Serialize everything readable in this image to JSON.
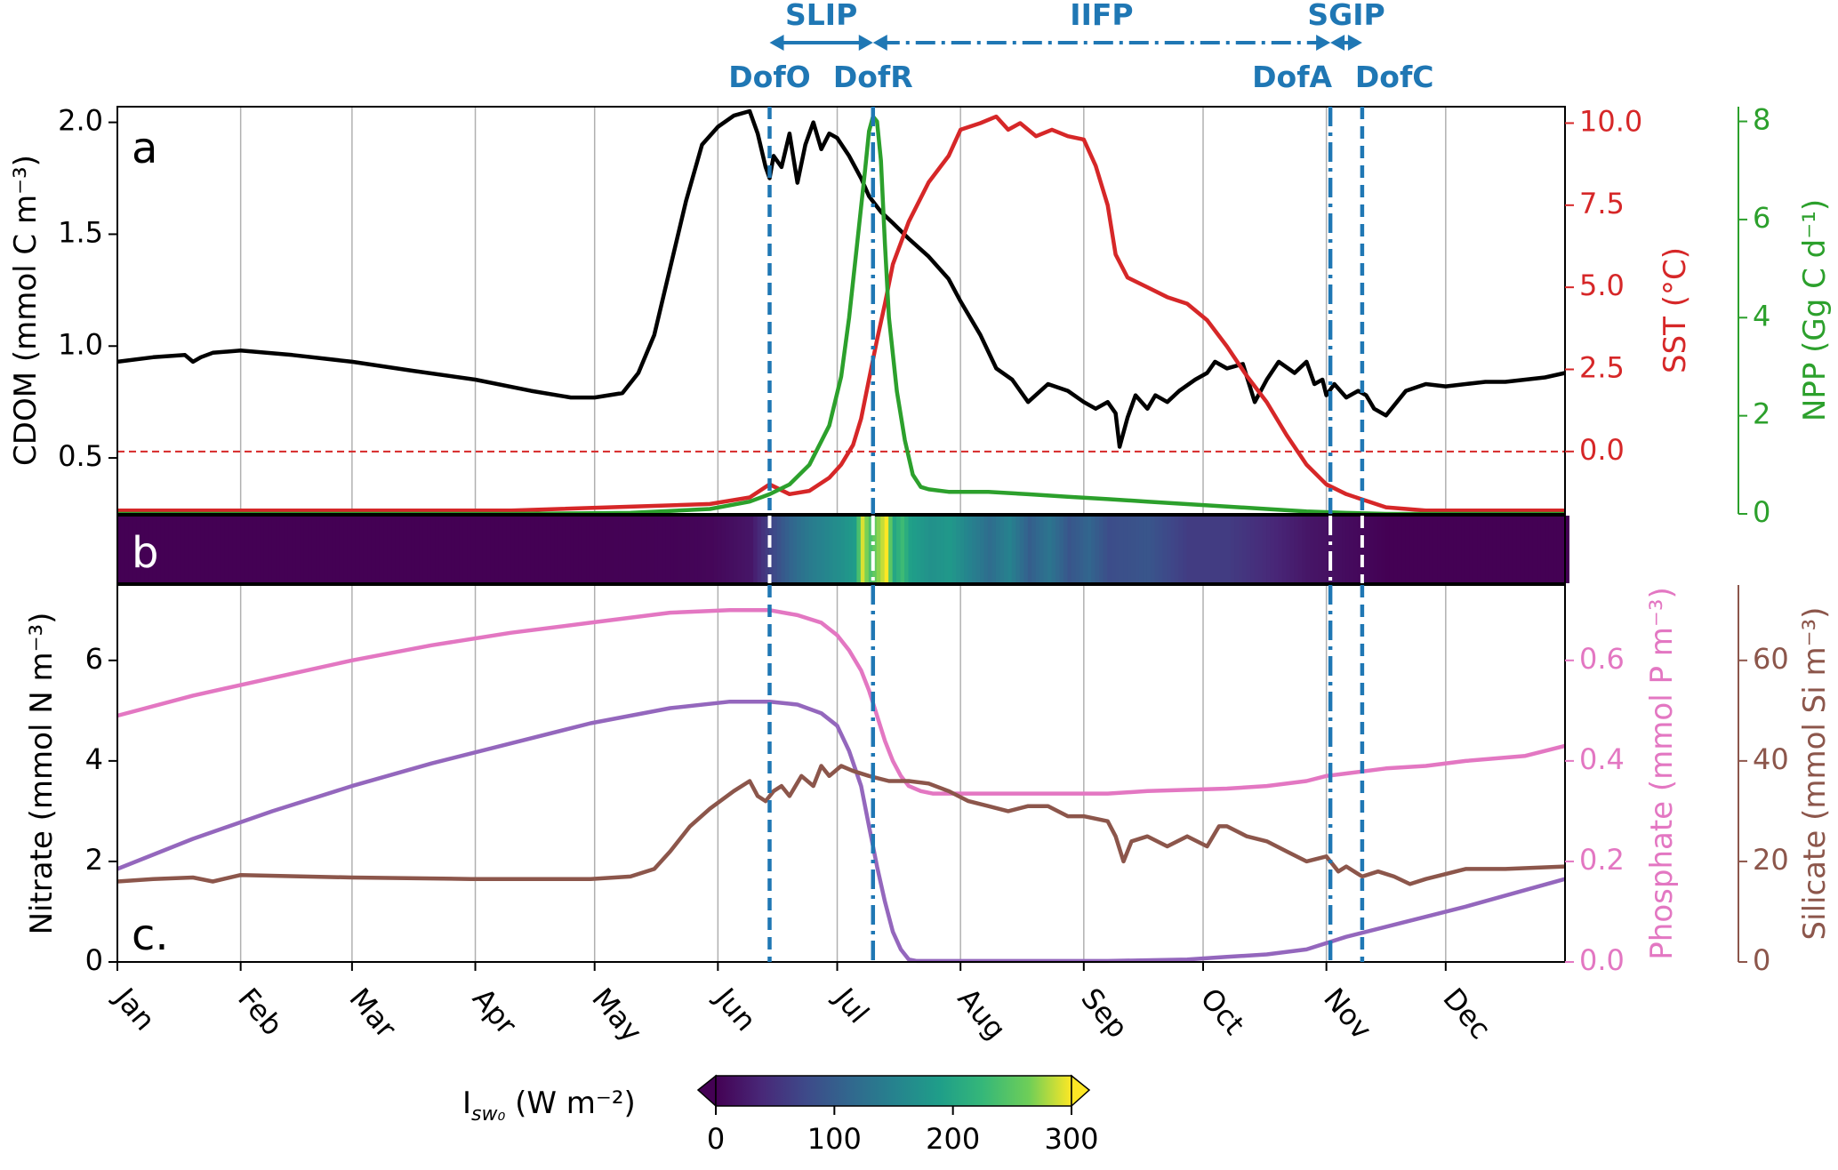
{
  "colors": {
    "cdom": "#000000",
    "sst": "#d62728",
    "npp": "#2ca02c",
    "nitrate": "#9467bd",
    "phosphate": "#e377c2",
    "silicate": "#8c564b",
    "event": "#1f77b4",
    "grid": "#b0b0b0"
  },
  "chart_data": [
    {
      "panel": "a",
      "type": "line",
      "x_unit": "day of year",
      "month_ticks": [
        "Jan",
        "Feb",
        "Mar",
        "Apr",
        "May",
        "Jun",
        "Jul",
        "Aug",
        "Sep",
        "Oct",
        "Nov",
        "Dec"
      ],
      "month_start_days": [
        1,
        32,
        60,
        91,
        121,
        152,
        182,
        213,
        244,
        274,
        305,
        335
      ],
      "xlim": [
        1,
        365
      ],
      "axes": {
        "left": {
          "label": "CDOM (mmol C m⁻³)",
          "ylim": [
            0.25,
            2.07
          ],
          "ticks": [
            "0.5",
            "1.0",
            "1.5",
            "2.0"
          ],
          "tick_values": [
            0.5,
            1.0,
            1.5,
            2.0
          ]
        },
        "right1": {
          "label": "SST (°C)",
          "ylim": [
            -1.9,
            10.5
          ],
          "ticks": [
            "0.0",
            "2.5",
            "5.0",
            "7.5",
            "10.0"
          ],
          "tick_values": [
            0,
            2.5,
            5,
            7.5,
            10
          ]
        },
        "right2": {
          "label": "NPP (Gg C d⁻¹)",
          "ylim": [
            0,
            8.3
          ],
          "ticks": [
            "0",
            "2",
            "4",
            "6",
            "8"
          ],
          "tick_values": [
            0,
            2,
            4,
            6,
            8
          ]
        }
      },
      "reference_line": {
        "axis": "right1",
        "value": 0.0,
        "style": "dashed"
      },
      "series": [
        {
          "name": "CDOM",
          "axis": "left",
          "x": [
            1,
            10,
            18,
            20,
            22,
            25,
            32,
            45,
            60,
            75,
            91,
            105,
            115,
            121,
            128,
            132,
            136,
            140,
            144,
            148,
            152,
            156,
            160,
            162,
            164,
            165,
            166,
            168,
            170,
            172,
            174,
            176,
            178,
            180,
            182,
            185,
            188,
            190,
            193,
            196,
            200,
            205,
            210,
            213,
            218,
            222,
            226,
            230,
            235,
            240,
            244,
            247,
            250,
            252,
            253,
            255,
            257,
            260,
            262,
            265,
            268,
            272,
            275,
            277,
            280,
            284,
            287,
            290,
            293,
            297,
            300,
            302,
            304,
            305,
            307,
            310,
            313,
            315,
            317,
            320,
            325,
            330,
            335,
            340,
            345,
            350,
            355,
            360,
            365
          ],
          "y": [
            0.93,
            0.95,
            0.96,
            0.93,
            0.95,
            0.97,
            0.98,
            0.96,
            0.93,
            0.89,
            0.85,
            0.8,
            0.77,
            0.77,
            0.79,
            0.88,
            1.05,
            1.35,
            1.65,
            1.9,
            1.98,
            2.03,
            2.05,
            1.95,
            1.8,
            1.75,
            1.85,
            1.8,
            1.95,
            1.73,
            1.9,
            2.0,
            1.88,
            1.95,
            1.93,
            1.85,
            1.75,
            1.67,
            1.6,
            1.55,
            1.48,
            1.4,
            1.3,
            1.2,
            1.05,
            0.9,
            0.85,
            0.75,
            0.83,
            0.8,
            0.75,
            0.72,
            0.75,
            0.7,
            0.55,
            0.68,
            0.78,
            0.72,
            0.78,
            0.75,
            0.8,
            0.85,
            0.88,
            0.93,
            0.9,
            0.92,
            0.75,
            0.85,
            0.93,
            0.88,
            0.93,
            0.83,
            0.85,
            0.78,
            0.83,
            0.77,
            0.8,
            0.78,
            0.72,
            0.69,
            0.8,
            0.83,
            0.82,
            0.83,
            0.84,
            0.84,
            0.85,
            0.86,
            0.88
          ]
        },
        {
          "name": "SST",
          "axis": "right1",
          "x": [
            1,
            100,
            150,
            160,
            165,
            170,
            175,
            180,
            183,
            186,
            188,
            190,
            192,
            194,
            196,
            200,
            205,
            210,
            213,
            218,
            222,
            225,
            228,
            232,
            236,
            240,
            244,
            247,
            250,
            252,
            255,
            260,
            265,
            270,
            275,
            280,
            285,
            290,
            295,
            300,
            305,
            310,
            315,
            320,
            330,
            340,
            365
          ],
          "y": [
            -1.8,
            -1.8,
            -1.6,
            -1.4,
            -1.0,
            -1.3,
            -1.2,
            -0.8,
            -0.4,
            0.2,
            1.0,
            2.2,
            3.4,
            4.5,
            5.7,
            7.0,
            8.2,
            9.0,
            9.8,
            10.0,
            10.2,
            9.8,
            10.0,
            9.6,
            9.8,
            9.6,
            9.5,
            8.7,
            7.5,
            6.0,
            5.3,
            5.0,
            4.7,
            4.5,
            4.0,
            3.2,
            2.3,
            1.5,
            0.5,
            -0.4,
            -1.0,
            -1.3,
            -1.5,
            -1.7,
            -1.8,
            -1.8,
            -1.8
          ]
        },
        {
          "name": "NPP",
          "axis": "right2",
          "x": [
            1,
            100,
            130,
            150,
            160,
            165,
            170,
            175,
            180,
            183,
            185,
            187,
            189,
            190,
            191,
            192,
            193,
            194,
            195,
            197,
            199,
            201,
            203,
            205,
            210,
            220,
            230,
            240,
            250,
            260,
            270,
            280,
            290,
            300,
            310,
            320,
            365
          ],
          "y": [
            0,
            0,
            0.02,
            0.1,
            0.25,
            0.4,
            0.6,
            1.0,
            1.8,
            2.8,
            4.0,
            5.5,
            7.0,
            7.8,
            8.1,
            8.0,
            7.2,
            5.5,
            4.0,
            2.5,
            1.5,
            0.8,
            0.55,
            0.5,
            0.45,
            0.45,
            0.4,
            0.35,
            0.3,
            0.25,
            0.2,
            0.15,
            0.1,
            0.05,
            0.02,
            0,
            0
          ]
        }
      ]
    },
    {
      "panel": "b",
      "type": "heatmap",
      "label": "b",
      "x_unit": "day of year",
      "colorbar": {
        "label": "I",
        "label_sub": "sw₀",
        "label_unit": " (W m⁻²)",
        "range": [
          0,
          300
        ],
        "ticks": [
          "0",
          "100",
          "200",
          "300"
        ],
        "tick_values": [
          0,
          100,
          200,
          300
        ],
        "extend": "both"
      },
      "x": [
        1,
        30,
        60,
        90,
        120,
        140,
        150,
        160,
        165,
        170,
        175,
        180,
        183,
        186,
        188,
        190,
        192,
        194,
        196,
        198,
        200,
        205,
        210,
        215,
        220,
        225,
        230,
        235,
        240,
        245,
        250,
        260,
        270,
        280,
        290,
        300,
        310,
        320,
        365
      ],
      "values": [
        0,
        0,
        0,
        0,
        0,
        2,
        5,
        20,
        70,
        110,
        140,
        160,
        170,
        185,
        290,
        240,
        270,
        300,
        200,
        230,
        190,
        170,
        180,
        150,
        120,
        150,
        100,
        130,
        90,
        110,
        80,
        90,
        60,
        60,
        40,
        20,
        10,
        0,
        0
      ]
    },
    {
      "panel": "c",
      "type": "line",
      "xlim": [
        1,
        365
      ],
      "axes": {
        "left": {
          "label": "Nitrate (mmol N m⁻³)",
          "ylim": [
            0,
            7.5
          ],
          "ticks": [
            "0",
            "2",
            "4",
            "6"
          ],
          "tick_values": [
            0,
            2,
            4,
            6
          ]
        },
        "right1": {
          "label": "Phosphate  (mmol P m⁻³)",
          "ylim": [
            0,
            0.75
          ],
          "ticks": [
            "0.0",
            "0.2",
            "0.4",
            "0.6"
          ],
          "tick_values": [
            0,
            0.2,
            0.4,
            0.6
          ]
        },
        "right2": {
          "label": "Silicate  (mmol Si m⁻³)",
          "ylim": [
            0,
            75
          ],
          "ticks": [
            "0",
            "20",
            "40",
            "60"
          ],
          "tick_values": [
            0,
            20,
            40,
            60
          ]
        }
      },
      "series": [
        {
          "name": "Nitrate",
          "axis": "left",
          "x": [
            1,
            20,
            40,
            60,
            80,
            100,
            120,
            140,
            155,
            165,
            172,
            178,
            182,
            185,
            188,
            190,
            192,
            194,
            196,
            198,
            200,
            202,
            205,
            210,
            230,
            250,
            270,
            280,
            290,
            300,
            310,
            320,
            340,
            365
          ],
          "y": [
            1.85,
            2.45,
            3.0,
            3.5,
            3.95,
            4.35,
            4.75,
            5.05,
            5.18,
            5.18,
            5.12,
            4.95,
            4.7,
            4.2,
            3.5,
            2.7,
            1.9,
            1.2,
            0.6,
            0.25,
            0.05,
            0.02,
            0.02,
            0.02,
            0.02,
            0.02,
            0.05,
            0.1,
            0.15,
            0.25,
            0.5,
            0.7,
            1.1,
            1.65
          ]
        },
        {
          "name": "Phosphate",
          "axis": "right1",
          "x": [
            1,
            20,
            40,
            60,
            80,
            100,
            120,
            140,
            155,
            165,
            172,
            178,
            182,
            185,
            188,
            190,
            192,
            194,
            196,
            198,
            200,
            203,
            206,
            210,
            220,
            240,
            250,
            260,
            280,
            290,
            300,
            305,
            310,
            320,
            330,
            340,
            355,
            365
          ],
          "y": [
            0.49,
            0.53,
            0.565,
            0.6,
            0.63,
            0.655,
            0.675,
            0.695,
            0.7,
            0.7,
            0.69,
            0.675,
            0.65,
            0.62,
            0.58,
            0.54,
            0.49,
            0.44,
            0.4,
            0.37,
            0.35,
            0.34,
            0.335,
            0.335,
            0.335,
            0.335,
            0.335,
            0.34,
            0.345,
            0.35,
            0.36,
            0.37,
            0.375,
            0.385,
            0.39,
            0.4,
            0.41,
            0.43
          ]
        },
        {
          "name": "Silicate",
          "axis": "right2",
          "x": [
            1,
            10,
            20,
            25,
            32,
            60,
            90,
            120,
            130,
            136,
            140,
            145,
            150,
            156,
            160,
            162,
            164,
            166,
            168,
            170,
            173,
            176,
            178,
            180,
            183,
            186,
            190,
            195,
            200,
            205,
            210,
            215,
            220,
            225,
            230,
            235,
            240,
            244,
            250,
            252,
            254,
            256,
            260,
            265,
            270,
            275,
            278,
            280,
            285,
            290,
            295,
            300,
            305,
            308,
            310,
            314,
            318,
            322,
            326,
            330,
            340,
            350,
            365
          ],
          "y": [
            16,
            16.5,
            16.8,
            16,
            17.3,
            16.8,
            16.5,
            16.5,
            17,
            18.5,
            22,
            27,
            30.5,
            34,
            36,
            33,
            32,
            34,
            35,
            33,
            37,
            35,
            39,
            37,
            39,
            38,
            37,
            36,
            36,
            35.5,
            34,
            32,
            31,
            30,
            31,
            31,
            29,
            29,
            28,
            25,
            20,
            24,
            25,
            23,
            25,
            23,
            27,
            27,
            25,
            24,
            22,
            20,
            21,
            18,
            19,
            17,
            18,
            17,
            15.5,
            16.5,
            18.5,
            18.5,
            19
          ]
        }
      ]
    }
  ],
  "events": {
    "lines": [
      {
        "id": "DofO",
        "label": "DofO",
        "day": 165,
        "style": "dashed"
      },
      {
        "id": "DofR",
        "label": "DofR",
        "day": 191,
        "style": "dashdot"
      },
      {
        "id": "DofA",
        "label": "DofA",
        "day": 306,
        "style": "dashdot"
      },
      {
        "id": "DofC",
        "label": "DofC",
        "day": 314,
        "style": "dashed"
      }
    ],
    "periods": [
      {
        "label": "SLIP",
        "start": 165,
        "end": 191,
        "style": "solid"
      },
      {
        "label": "IIFP",
        "start": 191,
        "end": 306,
        "style": "dashdot"
      },
      {
        "label": "SGIP",
        "start": 306,
        "end": 314,
        "style": "solid"
      }
    ]
  }
}
